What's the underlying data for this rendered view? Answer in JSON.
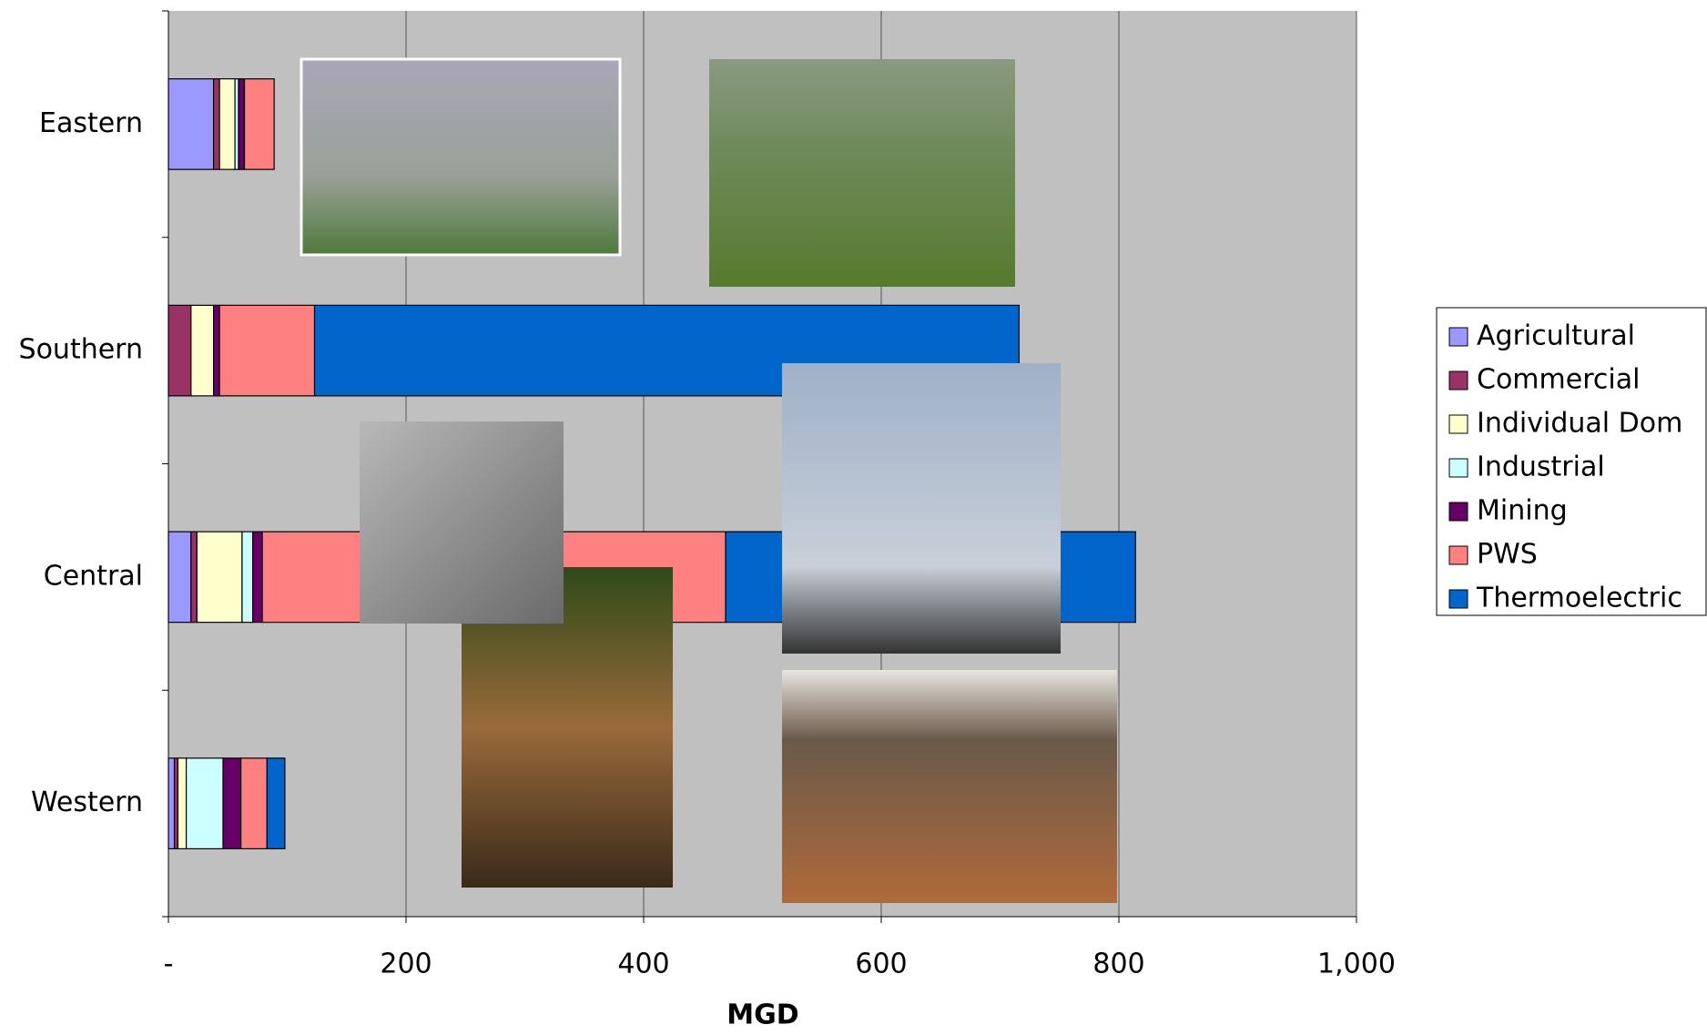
{
  "chart_data": {
    "type": "stacked-bar-horizontal",
    "categories": [
      "Eastern",
      "Southern",
      "Central",
      "Western"
    ],
    "series": [
      {
        "name": "Agricultural",
        "color": "#9999ff",
        "values": [
          38,
          0,
          19,
          5
        ]
      },
      {
        "name": "Commercial",
        "color": "#993366",
        "values": [
          5,
          19,
          5,
          3
        ]
      },
      {
        "name": "Individual Dom",
        "color": "#ffffcc",
        "values": [
          13,
          19,
          38,
          7
        ]
      },
      {
        "name": "Industrial",
        "color": "#ccffff",
        "values": [
          3,
          0,
          9,
          31
        ]
      },
      {
        "name": "Mining",
        "color": "#660066",
        "values": [
          5,
          5,
          8,
          15
        ]
      },
      {
        "name": "PWS",
        "color": "#ff8080",
        "values": [
          25,
          80,
          390,
          22
        ]
      },
      {
        "name": "Thermoelectric",
        "color": "#0066cc",
        "values": [
          0,
          593,
          345,
          15
        ]
      }
    ],
    "xlabel": "MGD",
    "xlim": [
      0,
      1000
    ],
    "xticks": [
      {
        "value": 0,
        "label": "-"
      },
      200,
      400,
      600,
      800,
      {
        "value": 1000,
        "label": "1,000"
      }
    ],
    "grid": true
  }
}
